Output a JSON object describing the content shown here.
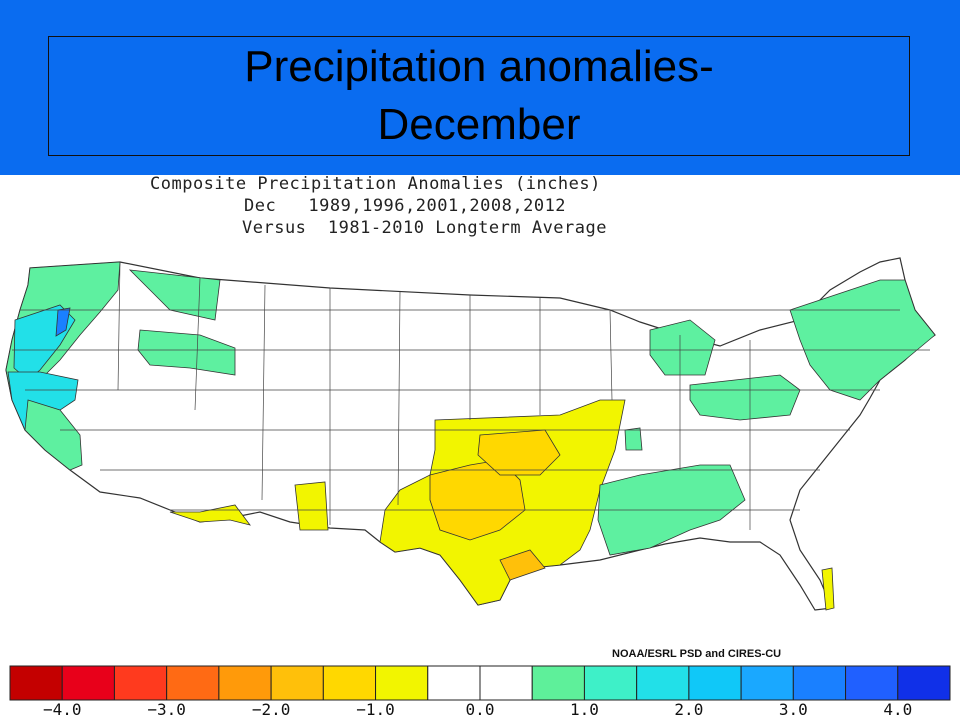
{
  "slide": {
    "title_line1": "Precipitation anomalies-",
    "title_line2": "December",
    "header_color": "#0a6cf0"
  },
  "plot": {
    "title_lines": [
      "Composite Precipitation Anomalies (inches)",
      "Dec   1989,1996,2001,2008,2012",
      "Versus  1981-2010 Longterm Average"
    ],
    "credit": "NOAA/ESRL PSD and CIRES-CU"
  },
  "colorbar": {
    "colors": [
      "#c40000",
      "#e8001a",
      "#ff3a1e",
      "#ff6a14",
      "#ff9a0a",
      "#ffc00a",
      "#ffd800",
      "#f2f500",
      "#ffffff",
      "#ffffff",
      "#5ef09a",
      "#3ef0c8",
      "#22e0e8",
      "#10c8f8",
      "#1aa8ff",
      "#1a80ff",
      "#2060ff",
      "#1030e8"
    ],
    "labels": [
      "-4.0",
      "-3.0",
      "-2.0",
      "-1.0",
      "0.0",
      "1.0",
      "2.0",
      "3.0",
      "4.0"
    ]
  },
  "map_regions": {
    "wet": {
      "color": "#5ef0a0"
    },
    "wetter": {
      "color": "#22e0e8"
    },
    "wettest": {
      "color": "#1a80ff"
    },
    "dry": {
      "color": "#f2f500"
    },
    "drier": {
      "color": "#ffd800"
    },
    "driest": {
      "color": "#ff9a0a"
    }
  }
}
